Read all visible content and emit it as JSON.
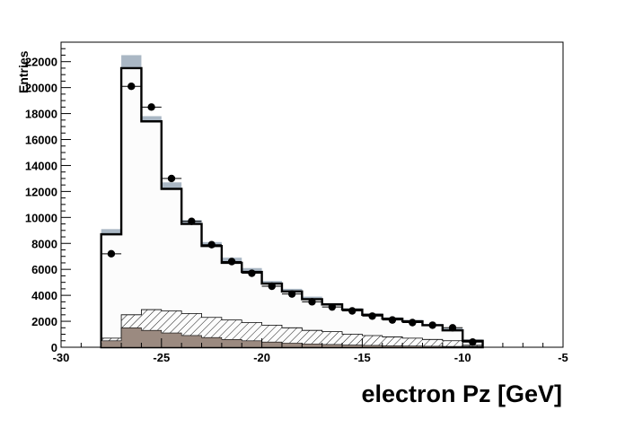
{
  "chart_data": {
    "type": "histogram",
    "xlabel": "electron Pz [GeV]",
    "ylabel": "Entries",
    "xlim": [
      -30,
      -5
    ],
    "ylim": [
      0,
      23500
    ],
    "x_ticks": [
      -30,
      -25,
      -20,
      -15,
      -10,
      -5
    ],
    "y_ticks": [
      0,
      2000,
      4000,
      6000,
      8000,
      10000,
      12000,
      14000,
      16000,
      18000,
      20000,
      22000
    ],
    "bin_edges": [
      -28,
      -27,
      -26,
      -25,
      -24,
      -23,
      -22,
      -21,
      -20,
      -19,
      -18,
      -17,
      -16,
      -15,
      -14,
      -13,
      -12,
      -11,
      -10,
      -9
    ],
    "series": [
      {
        "role": "mc_total",
        "style": "thick black step line",
        "values": [
          8700,
          21500,
          17400,
          12200,
          9500,
          7800,
          6500,
          5800,
          4900,
          4300,
          3700,
          3300,
          2900,
          2500,
          2200,
          2000,
          1700,
          1300,
          500
        ]
      },
      {
        "role": "mc_uncertainty_band",
        "style": "grey-blue filled band",
        "low": [
          8200,
          20600,
          16400,
          11700,
          8900,
          7500,
          6200,
          5500,
          4600,
          4100,
          3500,
          3100,
          2700,
          2300,
          2000,
          1800,
          1500,
          1150,
          400
        ],
        "high": [
          9100,
          22500,
          17800,
          12700,
          9800,
          8100,
          6900,
          6100,
          5100,
          4500,
          3900,
          3400,
          3000,
          2600,
          2300,
          2100,
          1800,
          1450,
          600
        ]
      },
      {
        "role": "background_hatched",
        "style": "diagonal hatching",
        "values": [
          700,
          2500,
          2900,
          2800,
          2600,
          2300,
          2100,
          1900,
          1700,
          1500,
          1300,
          1200,
          1000,
          900,
          800,
          700,
          600,
          500,
          150
        ]
      },
      {
        "role": "background_filled",
        "style": "taupe fill",
        "values": [
          500,
          1500,
          1300,
          1100,
          900,
          750,
          600,
          500,
          400,
          320,
          260,
          210,
          170,
          140,
          110,
          90,
          70,
          50,
          10
        ]
      },
      {
        "role": "data",
        "style": "black markers with x error bars",
        "x": [
          -27.5,
          -26.5,
          -25.5,
          -24.5,
          -23.5,
          -22.5,
          -21.5,
          -20.5,
          -19.5,
          -18.5,
          -17.5,
          -16.5,
          -15.5,
          -14.5,
          -13.5,
          -12.5,
          -11.5,
          -10.5,
          -9.5
        ],
        "y": [
          7200,
          20100,
          18500,
          13000,
          9700,
          7900,
          6600,
          5700,
          4700,
          4100,
          3500,
          3100,
          2800,
          2400,
          2100,
          1900,
          1700,
          1500,
          400
        ]
      }
    ],
    "colors": {
      "mc_fill": "#fcfcfc",
      "band": "#aab7c4",
      "background_fill": "#9b8a80",
      "line": "#000000"
    },
    "grid": false,
    "legend": "none"
  }
}
